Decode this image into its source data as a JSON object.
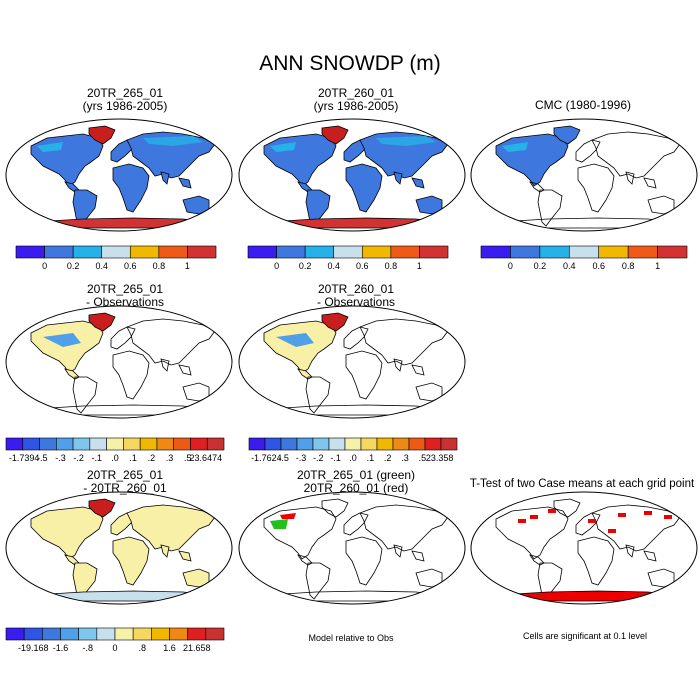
{
  "title": "ANN SNOWDP (m)",
  "panels": [
    {
      "id": "p1",
      "line1": "20TR_265_01",
      "line2": "(yrs 1986-2005)",
      "fill": "full",
      "cbar": "a"
    },
    {
      "id": "p2",
      "line1": "20TR_260_01",
      "line2": "(yrs 1986-2005)",
      "fill": "full",
      "cbar": "a"
    },
    {
      "id": "p3",
      "line1": "CMC (1980-1996)",
      "line2": "",
      "fill": "obs",
      "cbar": "a"
    },
    {
      "id": "p4",
      "line1": "20TR_265_01",
      "line2": "- Observations",
      "fill": "diff",
      "cbar": "b1"
    },
    {
      "id": "p5",
      "line1": "20TR_260_01",
      "line2": "- Observations",
      "fill": "diff",
      "cbar": "b2"
    },
    {
      "id": "p7",
      "line1": "20TR_265_01",
      "line2": "- 20TR_260_01",
      "fill": "casediff",
      "cbar": "c"
    },
    {
      "id": "p8",
      "line1": "20TR_265_01 (green)",
      "line2": "20TR_260_01 (red)",
      "fill": "overlay",
      "cbar": "none"
    },
    {
      "id": "p9",
      "line1": "T-Test of two Case means at each grid point",
      "line2": "",
      "fill": "ttest",
      "cbar": "none"
    }
  ],
  "colorbars": {
    "a": {
      "colors": [
        "#3a1cf0",
        "#3e78de",
        "#26b2e8",
        "#c8e0ec",
        "#f0b800",
        "#ef5a18",
        "#d23232"
      ],
      "labels": [
        "0",
        "0.2",
        "0.4",
        "0.6",
        "0.8",
        "1"
      ]
    },
    "b1": {
      "colors": [
        "#3a1cf0",
        "#2f55e6",
        "#3e78de",
        "#4fa0e8",
        "#7ec6ee",
        "#c8e0ec",
        "#f5f1a8",
        "#f6d860",
        "#f0b800",
        "#ee8a14",
        "#ec5a14",
        "#e02020",
        "#c83232"
      ],
      "labels": [
        "-1.7394",
        "-.5",
        "-.3",
        "-.2",
        "-.1",
        ".0",
        ".1",
        ".2",
        ".3",
        ".5",
        "23.6474"
      ]
    },
    "b2": {
      "colors": [
        "#3a1cf0",
        "#2f55e6",
        "#3e78de",
        "#4fa0e8",
        "#7ec6ee",
        "#c8e0ec",
        "#f5f1a8",
        "#f6d860",
        "#f0b800",
        "#ee8a14",
        "#ec5a14",
        "#e02020",
        "#c83232"
      ],
      "labels": [
        "-1.7624",
        "-.5",
        "-.3",
        "-.2",
        "-.1",
        ".0",
        ".1",
        ".2",
        ".3",
        ".5",
        "23.358"
      ]
    },
    "c": {
      "colors": [
        "#3a1cf0",
        "#2f55e6",
        "#3e78de",
        "#4fa0e8",
        "#7ec6ee",
        "#c8e0ec",
        "#f5f1a8",
        "#f6d860",
        "#f0b800",
        "#ee8a14",
        "#e02020",
        "#c83232"
      ],
      "labels": [
        "-19.168",
        "-1.6",
        "-.8",
        "0",
        ".8",
        "1.6",
        "21.658"
      ]
    }
  },
  "notes": {
    "model_rel": "Model relative to Obs",
    "sig": "Cells are significant at 0.1 level"
  },
  "colors": {
    "land_blue": "#3e78de",
    "antarctic_red": "#d23232",
    "arctic_red": "#c81e1e",
    "cyan": "#26b2e8",
    "diff_yellow": "#f7f0a6",
    "diff_light": "#c8e0ec",
    "green": "#22c01e",
    "ttest_red": "#ee0000"
  }
}
